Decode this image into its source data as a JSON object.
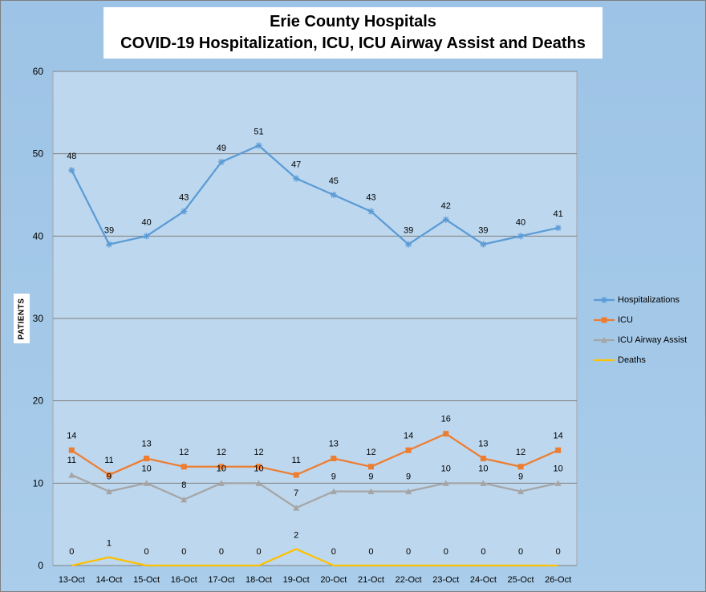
{
  "title_line1": "Erie County Hospitals",
  "title_line2": "COVID-19 Hospitalization, ICU, ICU Airway Assist and Deaths",
  "chart_data": {
    "type": "line",
    "title": "Erie County Hospitals COVID-19 Hospitalization, ICU, ICU Airway Assist and Deaths",
    "xlabel": "",
    "ylabel": "PATIENTS",
    "ylim": [
      0,
      60
    ],
    "yticks": [
      0,
      10,
      20,
      30,
      40,
      50,
      60
    ],
    "grid": true,
    "legend_position": "right",
    "categories": [
      "13-Oct",
      "14-Oct",
      "15-Oct",
      "16-Oct",
      "17-Oct",
      "18-Oct",
      "19-Oct",
      "20-Oct",
      "21-Oct",
      "22-Oct",
      "23-Oct",
      "24-Oct",
      "25-Oct",
      "26-Oct"
    ],
    "series": [
      {
        "name": "Hospitalizations",
        "color": "#5b9bd5",
        "marker": "star",
        "values": [
          48,
          39,
          40,
          43,
          49,
          51,
          47,
          45,
          43,
          39,
          42,
          39,
          40,
          41
        ]
      },
      {
        "name": "ICU",
        "color": "#ed7d31",
        "marker": "square",
        "values": [
          14,
          11,
          13,
          12,
          12,
          12,
          11,
          13,
          12,
          14,
          16,
          13,
          12,
          14
        ]
      },
      {
        "name": "ICU Airway Assist",
        "color": "#a5a5a5",
        "marker": "triangle",
        "values": [
          11,
          9,
          10,
          8,
          10,
          10,
          7,
          9,
          9,
          9,
          10,
          10,
          9,
          10
        ]
      },
      {
        "name": "Deaths",
        "color": "#ffc000",
        "marker": "none",
        "values": [
          0,
          1,
          0,
          0,
          0,
          0,
          2,
          0,
          0,
          0,
          0,
          0,
          0,
          0
        ]
      }
    ]
  }
}
